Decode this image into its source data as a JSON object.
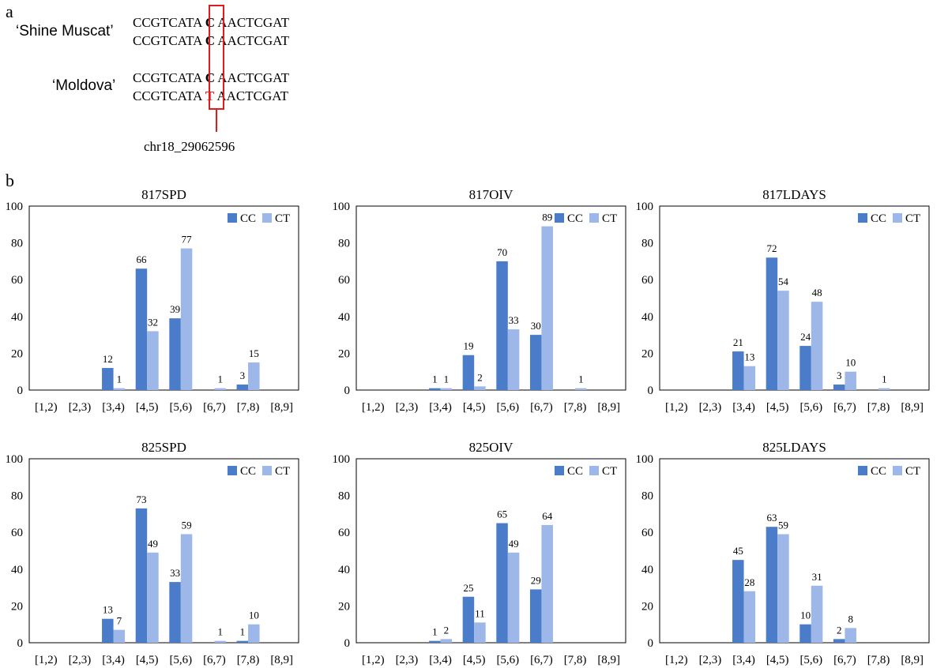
{
  "panel_a": {
    "label": "a",
    "cultivars": [
      {
        "name": "‘Shine Muscat’",
        "seqs": [
          {
            "pre": "CCGTCATA",
            "snp": "C",
            "post": "AACTCGAT",
            "alt": false
          },
          {
            "pre": "CCGTCATA",
            "snp": "C",
            "post": "AACTCGAT",
            "alt": false
          }
        ]
      },
      {
        "name": "‘Moldova’",
        "seqs": [
          {
            "pre": "CCGTCATA",
            "snp": "C",
            "post": "AACTCGAT",
            "alt": false
          },
          {
            "pre": "CCGTCATA",
            "snp": "T",
            "post": "AACTCGAT",
            "alt": true
          }
        ]
      }
    ],
    "snp_label": "chr18_29062596",
    "highlight_color": "#e01b1b"
  },
  "panel_b": {
    "label": "b"
  },
  "colors": {
    "CC": "#4a7cc9",
    "CT": "#9db7e8",
    "axis": "#000000"
  },
  "chart_data": [
    {
      "type": "bar",
      "title": "817SPD",
      "categories": [
        "[1,2)",
        "[2,3)",
        "[3,4)",
        "[4,5)",
        "[5,6)",
        "[6,7)",
        "[7,8)",
        "[8,9]"
      ],
      "series": [
        {
          "name": "CC",
          "values": [
            0,
            0,
            12,
            66,
            39,
            0,
            3,
            0
          ]
        },
        {
          "name": "CT",
          "values": [
            0,
            0,
            1,
            32,
            77,
            1,
            15,
            0
          ]
        }
      ],
      "ylim": [
        0,
        100
      ],
      "yticks": [
        0,
        20,
        40,
        60,
        80,
        100
      ],
      "legend": "top-right",
      "grid": false
    },
    {
      "type": "bar",
      "title": "817OIV",
      "categories": [
        "[1,2)",
        "[2,3)",
        "[3,4)",
        "[4,5)",
        "[5,6)",
        "[6,7)",
        "[7,8)",
        "[8,9]"
      ],
      "series": [
        {
          "name": "CC",
          "values": [
            0,
            0,
            1,
            19,
            70,
            30,
            0,
            0
          ]
        },
        {
          "name": "CT",
          "values": [
            0,
            0,
            1,
            2,
            33,
            89,
            1,
            0
          ]
        }
      ],
      "ylim": [
        0,
        100
      ],
      "yticks": [
        0,
        20,
        40,
        60,
        80,
        100
      ],
      "legend": "top-right",
      "grid": false
    },
    {
      "type": "bar",
      "title": "817LDAYS",
      "categories": [
        "[1,2)",
        "[2,3)",
        "[3,4)",
        "[4,5)",
        "[5,6)",
        "[6,7)",
        "[7,8)",
        "[8,9]"
      ],
      "series": [
        {
          "name": "CC",
          "values": [
            0,
            0,
            21,
            72,
            24,
            3,
            0,
            0
          ]
        },
        {
          "name": "CT",
          "values": [
            0,
            0,
            13,
            54,
            48,
            10,
            1,
            0
          ]
        }
      ],
      "ylim": [
        0,
        100
      ],
      "yticks": [
        0,
        20,
        40,
        60,
        80,
        100
      ],
      "legend": "top-right",
      "grid": false
    },
    {
      "type": "bar",
      "title": "825SPD",
      "categories": [
        "[1,2)",
        "[2,3)",
        "[3,4)",
        "[4,5)",
        "[5,6)",
        "[6,7)",
        "[7,8)",
        "[8,9]"
      ],
      "series": [
        {
          "name": "CC",
          "values": [
            0,
            0,
            13,
            73,
            33,
            0,
            1,
            0
          ]
        },
        {
          "name": "CT",
          "values": [
            0,
            0,
            7,
            49,
            59,
            1,
            10,
            0
          ]
        }
      ],
      "ylim": [
        0,
        100
      ],
      "yticks": [
        0,
        20,
        40,
        60,
        80,
        100
      ],
      "legend": "top-right",
      "grid": false
    },
    {
      "type": "bar",
      "title": "825OIV",
      "categories": [
        "[1,2)",
        "[2,3)",
        "[3,4)",
        "[4,5)",
        "[5,6)",
        "[6,7)",
        "[7,8)",
        "[8,9]"
      ],
      "series": [
        {
          "name": "CC",
          "values": [
            0,
            0,
            1,
            25,
            65,
            29,
            0,
            0
          ]
        },
        {
          "name": "CT",
          "values": [
            0,
            0,
            2,
            11,
            49,
            64,
            0,
            0
          ]
        }
      ],
      "ylim": [
        0,
        100
      ],
      "yticks": [
        0,
        20,
        40,
        60,
        80,
        100
      ],
      "legend": "top-right",
      "grid": false
    },
    {
      "type": "bar",
      "title": "825LDAYS",
      "categories": [
        "[1,2)",
        "[2,3)",
        "[3,4)",
        "[4,5)",
        "[5,6)",
        "[6,7)",
        "[7,8)",
        "[8,9]"
      ],
      "series": [
        {
          "name": "CC",
          "values": [
            0,
            0,
            45,
            63,
            10,
            2,
            0,
            0
          ]
        },
        {
          "name": "CT",
          "values": [
            0,
            0,
            28,
            59,
            31,
            8,
            0,
            0
          ]
        }
      ],
      "ylim": [
        0,
        100
      ],
      "yticks": [
        0,
        20,
        40,
        60,
        80,
        100
      ],
      "legend": "top-right",
      "grid": false
    }
  ]
}
